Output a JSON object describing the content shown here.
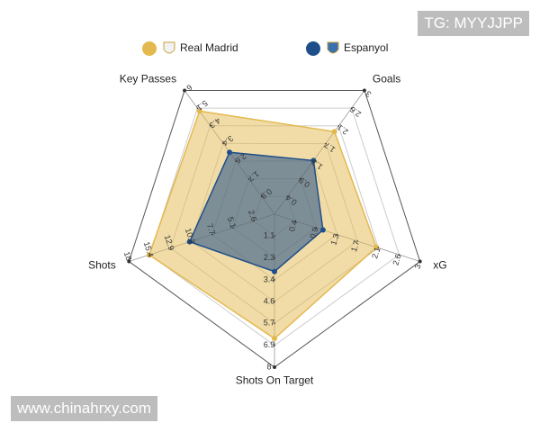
{
  "chart_data": {
    "type": "radar",
    "axes": [
      {
        "name": "Goals",
        "lim": [
          0,
          3
        ],
        "ticks": [
          {
            "value": 0.43,
            "label": "0.4"
          },
          {
            "value": 0.86,
            "label": "0.9"
          },
          {
            "value": 1.29,
            "label": "1.3"
          },
          {
            "value": 1.71,
            "label": "1.7"
          },
          {
            "value": 2.14,
            "label": "2.1"
          },
          {
            "value": 2.57,
            "label": "2.6"
          },
          3
        ]
      },
      {
        "name": "xG",
        "lim": [
          0,
          3
        ],
        "ticks": [
          {
            "value": 0.43,
            "label": "0.4"
          },
          {
            "value": 0.86,
            "label": "0.9"
          },
          {
            "value": 1.29,
            "label": "1.3"
          },
          {
            "value": 1.71,
            "label": "1.7"
          },
          {
            "value": 2.14,
            "label": "2.1"
          },
          {
            "value": 2.57,
            "label": "2.6"
          },
          3
        ]
      },
      {
        "name": "Shots On Target",
        "lim": [
          0,
          8
        ],
        "ticks": [
          {
            "value": 1.14,
            "label": "1.1"
          },
          {
            "value": 2.29,
            "label": "2.3"
          },
          {
            "value": 3.43,
            "label": "3.4"
          },
          {
            "value": 4.57,
            "label": "4.6"
          },
          {
            "value": 5.71,
            "label": "5.7"
          },
          {
            "value": 6.86,
            "label": "6.9"
          },
          8
        ]
      },
      {
        "name": "Shots",
        "lim": [
          0,
          18
        ],
        "ticks": [
          {
            "value": 2.57,
            "label": "2.6"
          },
          {
            "value": 5.14,
            "label": "5.1"
          },
          {
            "value": 7.71,
            "label": "7.7"
          },
          {
            "value": 10.29,
            "label": "10.3"
          },
          {
            "value": 12.86,
            "label": "12.9"
          },
          {
            "value": 15.43,
            "label": "15.4"
          },
          18
        ]
      },
      {
        "name": "Key Passes",
        "lim": [
          0,
          6
        ],
        "ticks": [
          {
            "value": 0.86,
            "label": "0.9"
          },
          {
            "value": 1.71,
            "label": "1.7"
          },
          {
            "value": 2.57,
            "label": "2.6"
          },
          {
            "value": 3.43,
            "label": "3.4"
          },
          {
            "value": 4.29,
            "label": "4.3"
          },
          {
            "value": 5.14,
            "label": "5.1"
          },
          6
        ]
      }
    ],
    "series": [
      {
        "name": "Real Madrid",
        "color": "#e3b94f",
        "values": [
          2,
          2.1,
          6.5,
          15.5,
          5
        ]
      },
      {
        "name": "Espanyol",
        "color": "#1f4f8a",
        "values": [
          1.3,
          1,
          3,
          10.5,
          3
        ]
      }
    ],
    "legend": "top",
    "grid": true
  },
  "watermarks": [
    "TG: MYYJJPP",
    "www.chinahrxy.com"
  ]
}
